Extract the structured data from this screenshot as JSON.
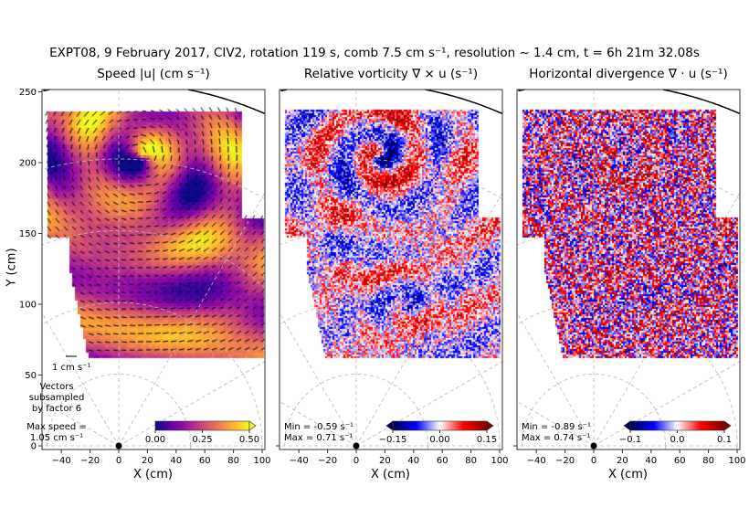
{
  "suptitle": "EXPT08, 9 February 2017, CIV2, rotation 119 s, comb 7.5 cm s⁻¹, resolution ~ 1.4 cm, t = 6h 21m 32.08s",
  "chart_data": [
    {
      "type": "heatmap",
      "title": "Speed |u| (cm s⁻¹)",
      "xlabel": "X (cm)",
      "ylabel": "Y (cm)",
      "xlim": [
        -53,
        102
      ],
      "ylim": [
        -3,
        253
      ],
      "xticks": [
        "−40",
        "−20",
        "0",
        "20",
        "40",
        "60",
        "80",
        "100"
      ],
      "yticks": [
        "0",
        "50",
        "100",
        "150",
        "200",
        "250"
      ],
      "colormap": "plasma",
      "colorbar": {
        "ticks": [
          "0.00",
          "0.25",
          "0.50"
        ],
        "range": [
          0,
          0.5
        ],
        "extend": "max"
      },
      "vector_scale_label": "1 cm s⁻¹",
      "annotations": [
        "Vectors",
        "subsampled",
        "by factor 6",
        "Max speed =",
        "1.05 cm s⁻¹"
      ],
      "grid": "polar dashed"
    },
    {
      "type": "heatmap",
      "title": "Relative vorticity ∇ × u (s⁻¹)",
      "xlabel": "X (cm)",
      "xlim": [
        -53,
        102
      ],
      "xticks": [
        "−40",
        "−20",
        "0",
        "20",
        "40",
        "60",
        "80",
        "100"
      ],
      "colormap": "seismic",
      "colorbar": {
        "ticks": [
          "−0.15",
          "0.00",
          "0.15"
        ],
        "range": [
          -0.15,
          0.15
        ],
        "extend": "both"
      },
      "annotations": [
        "Min = -0.59 s⁻¹",
        "Max =  0.71 s⁻¹"
      ],
      "grid": "polar dashed"
    },
    {
      "type": "heatmap",
      "title": "Horizontal divergence ∇ · u (s⁻¹)",
      "xlabel": "X (cm)",
      "xlim": [
        -53,
        102
      ],
      "xticks": [
        "−40",
        "−20",
        "0",
        "20",
        "40",
        "60",
        "80",
        "100"
      ],
      "colormap": "seismic",
      "colorbar": {
        "ticks": [
          "−0.1",
          "0.0",
          "0.1"
        ],
        "range": [
          -0.1,
          0.1
        ],
        "extend": "both"
      },
      "annotations": [
        "Min = -0.89 s⁻¹",
        "Max =  0.74 s⁻¹"
      ],
      "grid": "polar dashed"
    }
  ]
}
